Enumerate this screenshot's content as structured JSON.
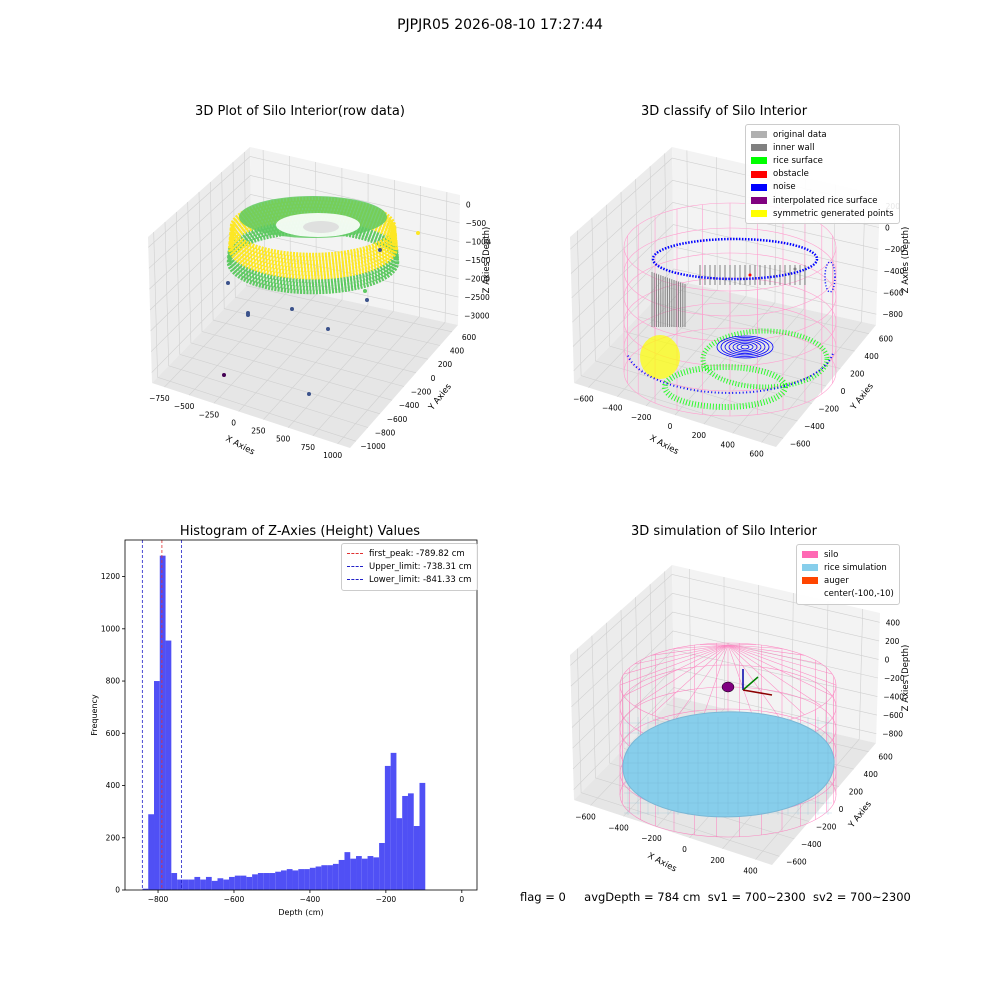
{
  "suptitle": "PJPJR05 2026-08-10 17:27:44",
  "chart_data": [
    {
      "type": "scatter",
      "title": "3D Plot of Silo Interior(row data)",
      "xlabel": "X Axies",
      "ylabel": "Y Axies",
      "zlabel": "Z Axies (Depth)",
      "x_ticks": [
        "−750",
        "−500",
        "−250",
        "0",
        "250",
        "500",
        "750",
        "1000"
      ],
      "y_ticks": [
        "−1000",
        "−800",
        "−600",
        "−400",
        "−200",
        "0",
        "200",
        "400",
        "600"
      ],
      "z_ticks": [
        "0",
        "−500",
        "−1000",
        "−1500",
        "−2000",
        "−2500",
        "−3000"
      ],
      "xlim": [
        -850,
        1000
      ],
      "ylim": [
        -1000,
        700
      ],
      "zlim": [
        -3300,
        100
      ],
      "grid": true,
      "colors": {
        "high": "#fde725",
        "mid": "#5ec962",
        "low": "#3b528b",
        "lowest": "#440154"
      }
    },
    {
      "type": "scatter",
      "title": "3D classify of Silo Interior",
      "xlabel": "X Axies",
      "ylabel": "Y Axies",
      "zlabel": "Z Axies (Depth)",
      "x_ticks": [
        "−600",
        "−400",
        "−200",
        "0",
        "200",
        "400",
        "600"
      ],
      "y_ticks": [
        "−600",
        "−400",
        "−200",
        "0",
        "200",
        "400",
        "600"
      ],
      "z_ticks": [
        "200",
        "0",
        "−200",
        "−400",
        "−600",
        "−800"
      ],
      "grid": true,
      "legend_position": "top-right",
      "legend": [
        {
          "label": "original data",
          "color": "#b0b0b0"
        },
        {
          "label": "inner wall",
          "color": "#808080"
        },
        {
          "label": "rice surface",
          "color": "#00ff00"
        },
        {
          "label": "obstacle",
          "color": "#ff0000"
        },
        {
          "label": "noise",
          "color": "#0000ff"
        },
        {
          "label": "interpolated rice surface",
          "color": "#800080"
        },
        {
          "label": "symmetric generated points",
          "color": "#ffff00"
        }
      ]
    },
    {
      "type": "bar",
      "title": "Histogram of Z-Axies (Height) Values",
      "xlabel": "Depth (cm)",
      "ylabel": "Frequency",
      "x_ticks": [
        -800,
        -600,
        -400,
        -200,
        0
      ],
      "y_ticks": [
        0,
        200,
        400,
        600,
        800,
        1000,
        1200
      ],
      "xlim": [
        -887,
        40
      ],
      "ylim": [
        0,
        1340
      ],
      "bin_edges_start": -841,
      "bin_width": 15.2,
      "values": [
        5,
        290,
        800,
        1280,
        955,
        65,
        40,
        40,
        40,
        50,
        40,
        50,
        35,
        45,
        40,
        50,
        55,
        55,
        50,
        60,
        65,
        65,
        65,
        70,
        75,
        80,
        75,
        80,
        80,
        85,
        90,
        95,
        95,
        100,
        115,
        145,
        120,
        130,
        120,
        130,
        125,
        180,
        475,
        525,
        275,
        360,
        370,
        245,
        410
      ],
      "bar_color": "#5050f5",
      "legend_position": "top-right",
      "lines": [
        {
          "label": "first_peak: -789.82 cm",
          "x": -789.82,
          "color": "#e03030"
        },
        {
          "label": "Upper_limit: -738.31 cm",
          "x": -738.31,
          "color": "#2020c8"
        },
        {
          "label": "Lower_limit: -841.33 cm",
          "x": -841.33,
          "color": "#2020c8"
        }
      ]
    },
    {
      "type": "scatter",
      "title": "3D simulation of Silo Interior",
      "xlabel": "X Axies",
      "ylabel": "Y Axies",
      "zlabel": "Z Axies (Depth)",
      "x_ticks": [
        "−600",
        "−400",
        "−200",
        "0",
        "200",
        "400"
      ],
      "y_ticks": [
        "−600",
        "−400",
        "−200",
        "0",
        "200",
        "400",
        "600"
      ],
      "z_ticks": [
        "400",
        "200",
        "0",
        "−200",
        "−400",
        "−600",
        "−800"
      ],
      "grid": true,
      "legend_position": "top-right",
      "legend": [
        {
          "label": "silo",
          "color": "#ff69b4"
        },
        {
          "label": "rice simulation",
          "color": "#87ceeb"
        },
        {
          "label": "auger",
          "color": "#ff4500"
        },
        {
          "label": "center(-100,-10)",
          "color": ""
        }
      ]
    }
  ],
  "footer": {
    "flag": "flag = 0",
    "avg": "avgDepth = 784 cm",
    "sv1": "sv1 = 700~2300",
    "sv2": "sv2 = 700~2300"
  }
}
